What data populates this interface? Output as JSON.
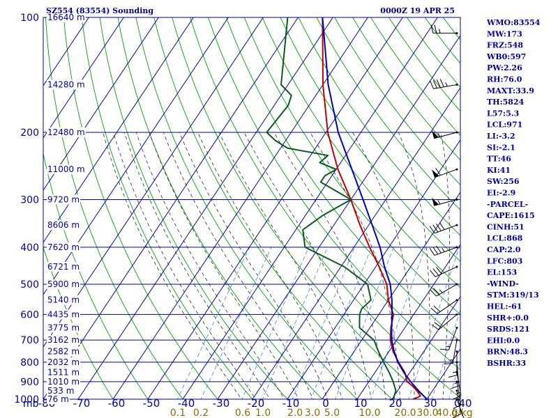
{
  "header": {
    "title": "SZ554 (83554) Sounding",
    "time": "0000Z 19 APR 25"
  },
  "chart_data": {
    "type": "skew-t",
    "pressure_levels": [
      100,
      200,
      300,
      400,
      500,
      600,
      700,
      800,
      900,
      1000
    ],
    "temperature_ticks": [
      -80,
      -70,
      -60,
      -50,
      -40,
      -30,
      -20,
      -10,
      0,
      10,
      20,
      30,
      40
    ],
    "x_unit_left": "mb",
    "x_unit_right": "C",
    "mixing_ratio_labels": [
      "0.1",
      "0.2",
      "0.6",
      "1.0",
      "2.0",
      "3.0",
      "5.0",
      "10.0",
      "20.0",
      "30.0",
      "40.0"
    ],
    "mixing_ratio_unit": "g/kg",
    "height_labels": [
      {
        "p": 100,
        "text": "16640 m"
      },
      {
        "p": 150,
        "text": "14280 m"
      },
      {
        "p": 200,
        "text": "12480 m"
      },
      {
        "p": 250,
        "text": "11000 m"
      },
      {
        "p": 300,
        "text": "9720 m"
      },
      {
        "p": 350,
        "text": "8606 m"
      },
      {
        "p": 400,
        "text": "7620 m"
      },
      {
        "p": 450,
        "text": "6721 m"
      },
      {
        "p": 500,
        "text": "5900 m"
      },
      {
        "p": 550,
        "text": "5140 m"
      },
      {
        "p": 600,
        "text": "4435 m"
      },
      {
        "p": 650,
        "text": "3775 m"
      },
      {
        "p": 700,
        "text": "3162 m"
      },
      {
        "p": 750,
        "text": "2582 m"
      },
      {
        "p": 800,
        "text": "2032 m"
      },
      {
        "p": 850,
        "text": "1511 m"
      },
      {
        "p": 900,
        "text": "1010 m"
      },
      {
        "p": 950,
        "text": "533 m"
      },
      {
        "p": 1000,
        "text": "76 m"
      }
    ],
    "series": [
      {
        "key": "temperature",
        "color": "#c00000",
        "points": [
          [
            1000,
            26
          ],
          [
            990,
            27
          ],
          [
            980,
            27.5
          ],
          [
            950,
            25.5
          ],
          [
            925,
            23.5
          ],
          [
            900,
            21
          ],
          [
            850,
            18.5
          ],
          [
            800,
            14.8
          ],
          [
            750,
            11.2
          ],
          [
            700,
            8.2
          ],
          [
            650,
            6
          ],
          [
            600,
            4.2
          ],
          [
            550,
            0
          ],
          [
            500,
            -3.5
          ],
          [
            450,
            -9
          ],
          [
            400,
            -15.5
          ],
          [
            350,
            -22.5
          ],
          [
            300,
            -30
          ],
          [
            250,
            -39.5
          ],
          [
            200,
            -49.5
          ],
          [
            150,
            -60
          ],
          [
            100,
            -73
          ]
        ]
      },
      {
        "key": "dewpoint",
        "color": "#0a5a1e",
        "points": [
          [
            1000,
            20.5
          ],
          [
            980,
            20
          ],
          [
            950,
            19.5
          ],
          [
            900,
            17
          ],
          [
            850,
            14
          ],
          [
            800,
            10.5
          ],
          [
            750,
            7
          ],
          [
            700,
            3.5
          ],
          [
            650,
            -3
          ],
          [
            600,
            -5.5
          ],
          [
            580,
            -6
          ],
          [
            550,
            -5
          ],
          [
            500,
            -9
          ],
          [
            450,
            -19
          ],
          [
            400,
            -34
          ],
          [
            360,
            -38
          ],
          [
            330,
            -35
          ],
          [
            300,
            -30
          ],
          [
            270,
            -42
          ],
          [
            260,
            -42
          ],
          [
            250,
            -40
          ],
          [
            240,
            -46
          ],
          [
            230,
            -45
          ],
          [
            220,
            -58
          ],
          [
            210,
            -63
          ],
          [
            200,
            -67
          ],
          [
            170,
            -66
          ],
          [
            160,
            -67
          ],
          [
            150,
            -72
          ],
          [
            100,
            -83
          ]
        ]
      },
      {
        "key": "parcel",
        "color": "#0000c0",
        "points": [
          [
            1000,
            30
          ],
          [
            950,
            26
          ],
          [
            900,
            22
          ],
          [
            850,
            18.2
          ],
          [
            800,
            14.6
          ],
          [
            750,
            11.5
          ],
          [
            700,
            8.6
          ],
          [
            650,
            6.2
          ],
          [
            600,
            3.8
          ],
          [
            550,
            1
          ],
          [
            500,
            -2.5
          ],
          [
            450,
            -7.5
          ],
          [
            400,
            -12.5
          ],
          [
            350,
            -19
          ],
          [
            300,
            -26.5
          ],
          [
            250,
            -35.5
          ],
          [
            200,
            -46.5
          ],
          [
            150,
            -58.5
          ],
          [
            100,
            -73
          ]
        ]
      }
    ],
    "wind_barbs": [
      {
        "p": 110,
        "dir": 270,
        "kt": 25
      },
      {
        "p": 150,
        "dir": 260,
        "kt": 45
      },
      {
        "p": 200,
        "dir": 255,
        "kt": 55
      },
      {
        "p": 250,
        "dir": 250,
        "kt": 60
      },
      {
        "p": 300,
        "dir": 255,
        "kt": 55
      },
      {
        "p": 350,
        "dir": 250,
        "kt": 40
      },
      {
        "p": 400,
        "dir": 250,
        "kt": 35
      },
      {
        "p": 450,
        "dir": 245,
        "kt": 30
      },
      {
        "p": 500,
        "dir": 240,
        "kt": 25
      },
      {
        "p": 550,
        "dir": 235,
        "kt": 20
      },
      {
        "p": 600,
        "dir": 230,
        "kt": 20
      },
      {
        "p": 650,
        "dir": 200,
        "kt": 15
      },
      {
        "p": 700,
        "dir": 190,
        "kt": 15
      },
      {
        "p": 750,
        "dir": 180,
        "kt": 15
      },
      {
        "p": 800,
        "dir": 175,
        "kt": 15
      },
      {
        "p": 850,
        "dir": 170,
        "kt": 15
      },
      {
        "p": 900,
        "dir": 170,
        "kt": 10
      },
      {
        "p": 950,
        "dir": 170,
        "kt": 10
      },
      {
        "p": 1000,
        "dir": 160,
        "kt": 5
      }
    ],
    "grid": true,
    "colors": {
      "grid": "#0000a0",
      "dry_adiabat": "#00a000",
      "moist_adiabat": "#2a2a2a",
      "mixing_ratio": "#4a90e8"
    }
  },
  "indices": [
    "WMO:83554",
    "MW:173",
    "FRZ:548",
    "WB0:597",
    "PW:2.26",
    "RH:76.0",
    "MAXT:33.9",
    "TH:5824",
    "L57:5.3",
    "LCL:971",
    "LI:-3.2",
    "SI:-2.1",
    "TT:46",
    "KI:41",
    "SW:256",
    "EI:-2.9",
    "-PARCEL-",
    "CAPE:1615",
    "CINH:51",
    "LCL:868",
    "CAP:2.0",
    "LFC:803",
    "EL:153",
    "-WIND-",
    "STM:319/13",
    "HEL:-61",
    "SHR+:0.0",
    "SRDS:121",
    "EHI:0.0",
    "BRN:48.3",
    "BSHR:33"
  ]
}
